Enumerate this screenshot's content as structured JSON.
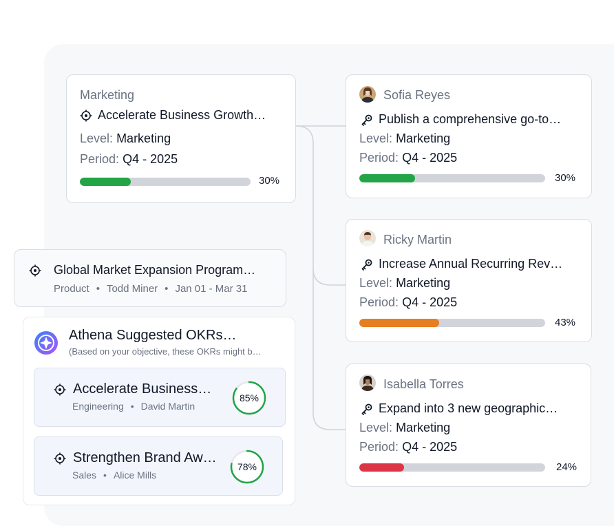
{
  "objective": {
    "department": "Marketing",
    "title": "Accelerate Business Growth…",
    "level_label": "Level:",
    "level_value": "Marketing",
    "period_label": "Period:",
    "period_value": "Q4 - 2025",
    "progress": 30,
    "progress_label": "30%",
    "progress_color": "#22a447"
  },
  "key_results": [
    {
      "owner": "Sofia Reyes",
      "title": "Publish a comprehensive go-to…",
      "level_label": "Level:",
      "level_value": "Marketing",
      "period_label": "Period:",
      "period_value": "Q4 - 2025",
      "progress": 30,
      "progress_label": "30%",
      "progress_color": "#22a447"
    },
    {
      "owner": "Ricky Martin",
      "title": "Increase Annual Recurring Rev…",
      "level_label": "Level:",
      "level_value": "Marketing",
      "period_label": "Period:",
      "period_value": "Q4 - 2025",
      "progress": 43,
      "progress_label": "43%",
      "progress_color": "#e67e22"
    },
    {
      "owner": "Isabella Torres",
      "title": "Expand into 3 new geographic…",
      "level_label": "Level:",
      "level_value": "Marketing",
      "period_label": "Period:",
      "period_value": "Q4 - 2025",
      "progress": 24,
      "progress_label": "24%",
      "progress_color": "#dc3545"
    }
  ],
  "program": {
    "title": "Global Market Expansion Program…",
    "dept": "Product",
    "owner": "Todd Miner",
    "dates": "Jan 01 - Mar 31"
  },
  "athena": {
    "title": "Athena Suggested OKRs…",
    "subtitle": "(Based on your objective, these OKRs might b…",
    "suggestions": [
      {
        "title": "Accelerate Business…",
        "dept": "Engineering",
        "owner": "David Martin",
        "score": 85,
        "score_label": "85%"
      },
      {
        "title": "Strengthen Brand Aw…",
        "dept": "Sales",
        "owner": "Alice Mills",
        "score": 78,
        "score_label": "78%"
      }
    ]
  },
  "separator": "•",
  "icons": {
    "objective": "target-icon",
    "key_result": "key-icon",
    "athena": "compass-logo-icon"
  }
}
